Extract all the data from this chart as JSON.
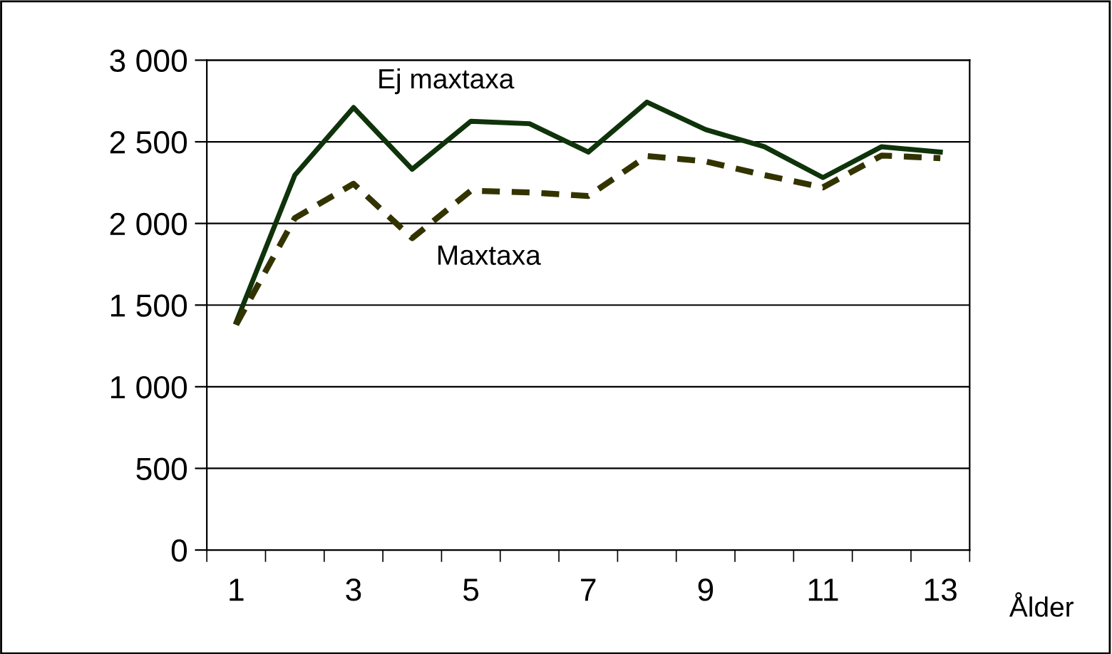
{
  "chart_data": {
    "type": "line",
    "xlabel": "Ålder",
    "categories": [
      "1",
      null,
      "3",
      null,
      "5",
      null,
      "7",
      null,
      "9",
      null,
      "11",
      null,
      "13"
    ],
    "series": [
      {
        "name": "Ej maxtaxa",
        "color": "#0f330a",
        "line_style": "solid",
        "values": [
          1395,
          2296,
          2710,
          2332,
          2626,
          2611,
          2437,
          2743,
          2575,
          2470,
          2281,
          2470,
          2437
        ]
      },
      {
        "name": "Maxtaxa",
        "color": "#333300",
        "line_style": "dashed",
        "values": [
          1380,
          2033,
          2243,
          1910,
          2201,
          2190,
          2168,
          2413,
          2380,
          2296,
          2221,
          2416,
          2400
        ]
      }
    ],
    "ylim": [
      0,
      3000
    ],
    "yticks": [
      0,
      500,
      {
        "value": 1000,
        "label": "1 000"
      },
      {
        "value": 1500,
        "label": "1 500"
      },
      {
        "value": 2000,
        "label": "2 000"
      },
      {
        "value": 2500,
        "label": "2 500"
      },
      {
        "value": 3000,
        "label": "3 000"
      }
    ],
    "grid": "y",
    "marker": "none"
  }
}
